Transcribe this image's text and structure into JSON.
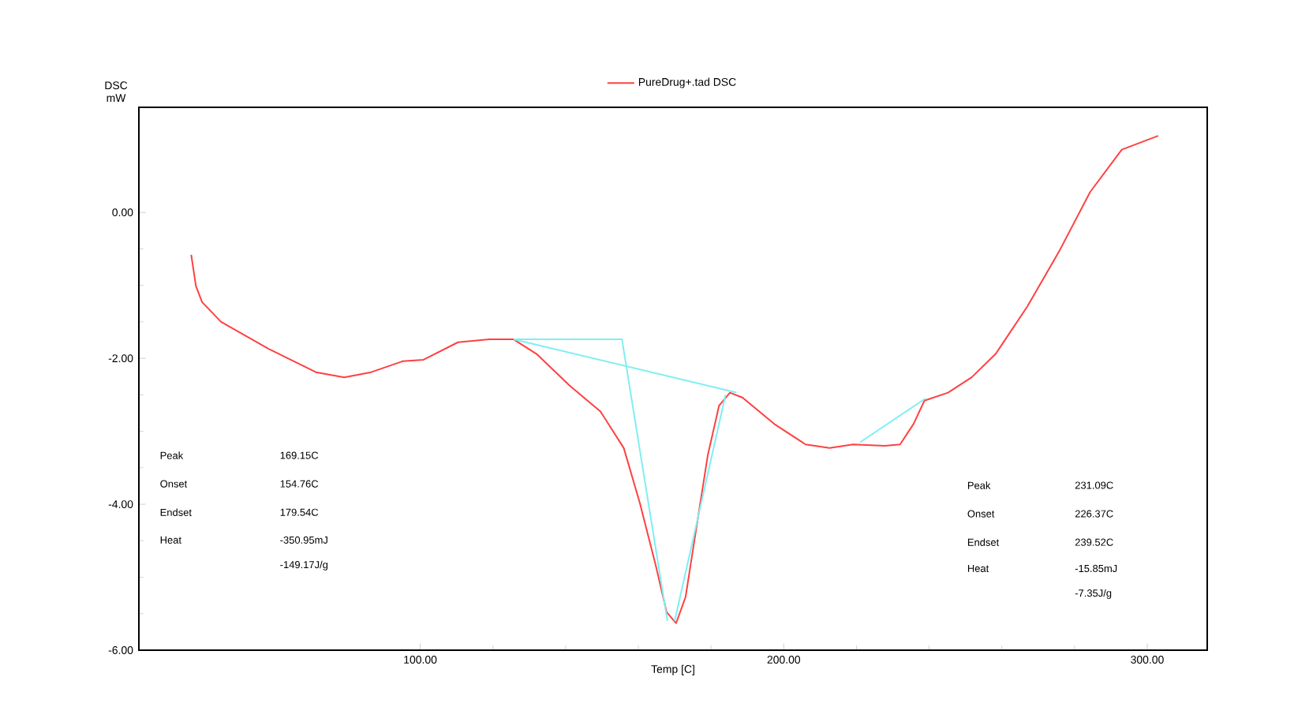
{
  "chart_data": {
    "type": "line",
    "xlabel": "Temp [C]",
    "ylabel": "DSC mW",
    "legend": "top",
    "marker": "none",
    "grid": false,
    "xlim": [
      22.6,
      316.5
    ],
    "ylim": [
      -6,
      1.44
    ],
    "xticks": [
      {
        "value": 100,
        "label": "100.00"
      },
      {
        "value": 200,
        "label": "200.00"
      },
      {
        "value": 300,
        "label": "300.00"
      }
    ],
    "yticks": [
      {
        "value": -6,
        "label": "-6.00"
      },
      {
        "value": -4,
        "label": "-4.00"
      },
      {
        "value": -2,
        "label": "-2.00"
      },
      {
        "value": 0,
        "label": "0.00"
      }
    ],
    "series": [
      {
        "name": "PureDrug+.tad DSC",
        "color": "#ff4040",
        "x": [
          37,
          38.3,
          40,
          45.2,
          58.3,
          71.3,
          79.1,
          86.5,
          95.2,
          100.9,
          110.4,
          119,
          125.7,
          132,
          141,
          149.6,
          156,
          160.4,
          164.8,
          167.8,
          170.4,
          173,
          175.7,
          179.1,
          182.2,
          185.2,
          188.7,
          197.4,
          206,
          212.6,
          219.1,
          227.8,
          232,
          235.7,
          238.7,
          245.2,
          251.7,
          258.3,
          267,
          275.7,
          284.3,
          293,
          303
        ],
        "values": [
          -0.58,
          -1.01,
          -1.23,
          -1.5,
          -1.87,
          -2.19,
          -2.26,
          -2.19,
          -2.04,
          -2.02,
          -1.78,
          -1.74,
          -1.74,
          -1.94,
          -2.37,
          -2.73,
          -3.23,
          -3.98,
          -4.84,
          -5.48,
          -5.63,
          -5.27,
          -4.41,
          -3.33,
          -2.65,
          -2.47,
          -2.54,
          -2.9,
          -3.18,
          -3.23,
          -3.18,
          -3.2,
          -3.18,
          -2.9,
          -2.58,
          -2.47,
          -2.26,
          -1.94,
          -1.29,
          -0.54,
          0.28,
          0.86,
          1.05
        ]
      },
      {
        "color": "#80eef2",
        "x": [
          125.7,
          155.5,
          168
        ],
        "values": [
          -1.74,
          -1.74,
          -5.6
        ]
      },
      {
        "color": "#80eef2",
        "x": [
          170,
          184
        ],
        "values": [
          -5.6,
          -2.5
        ]
      },
      {
        "color": "#80eef2",
        "x": [
          125.7,
          187
        ],
        "values": [
          -1.74,
          -2.47
        ]
      },
      {
        "color": "#80eef2",
        "x": [
          221,
          239
        ],
        "values": [
          -3.15,
          -2.55
        ]
      }
    ],
    "annotations": [
      "Peak",
      "Onset",
      "Endset",
      "Heat",
      "169.15C",
      "154.76C",
      "179.54C",
      "-350.95mJ",
      "-149.17J/g",
      "Peak",
      "Onset",
      "Endset",
      "Heat",
      "231.09C",
      "226.37C",
      "239.52C",
      "-15.85mJ",
      "-7.35J/g"
    ]
  }
}
